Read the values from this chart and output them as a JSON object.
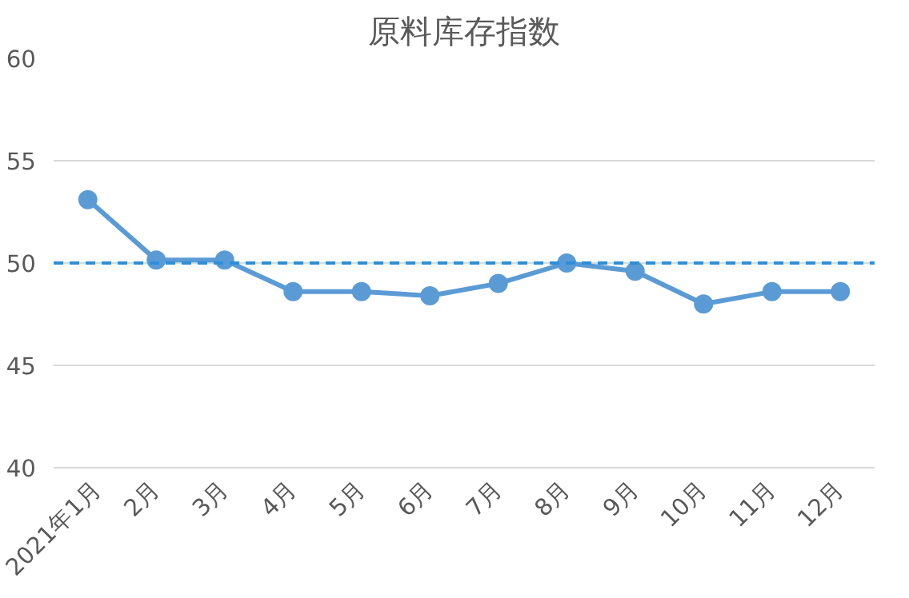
{
  "chart_data": {
    "type": "line",
    "title": "原料库存指数",
    "categories": [
      "2021年1月",
      "2月",
      "3月",
      "4月",
      "5月",
      "6月",
      "7月",
      "8月",
      "9月",
      "10月",
      "11月",
      "12月"
    ],
    "series": [
      {
        "color": "#5b9bd5",
        "values": [
          53.1,
          50.15,
          50.15,
          48.6,
          48.6,
          48.4,
          49.0,
          50.0,
          49.6,
          48.0,
          48.6,
          48.6
        ]
      }
    ],
    "ylim": [
      40,
      60
    ],
    "yticks": [
      40,
      45,
      50,
      55,
      60
    ],
    "grid": "y",
    "marker": "circle",
    "line_style": "solid",
    "ref_lines": [
      {
        "axis": "y",
        "value": 50,
        "color": "#2e8fd8",
        "line_style": "dashed"
      }
    ]
  }
}
